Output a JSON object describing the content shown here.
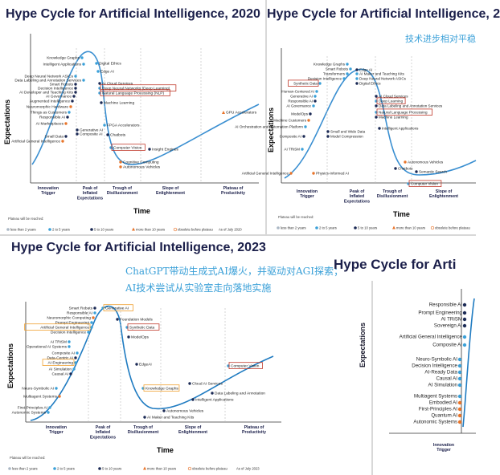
{
  "colors": {
    "title": "#1b1f4a",
    "curve_2020": "#3a8fd1",
    "curve_2023": "#1f7bc1",
    "cn_text": "#3aa0d8",
    "highlight_red": "#c0392b",
    "highlight_orange": "#f0a030",
    "dot_lt2": "#aab7c4",
    "dot_2to5": "#3aa0d8",
    "dot_5to10": "#1b2a55",
    "dot_gt10": "#e8742a"
  },
  "panel_2020": {
    "title": "Hype Cycle for Artificial Intelligence, 2020",
    "y_axis": "Expectations",
    "x_axis": "Time",
    "phases": [
      [
        "Innovation",
        "Trigger"
      ],
      [
        "Peak of",
        "Inflated",
        "Expectations"
      ],
      [
        "Trough of",
        "Disillusionment"
      ],
      [
        "Slope of",
        "Enlightenment"
      ],
      [
        "Plateau of",
        "Productivity"
      ]
    ],
    "items": [
      {
        "label": "Knowledge Graphs"
      },
      {
        "label": "Intelligent Applications"
      },
      {
        "label": "Digital Ethics"
      },
      {
        "label": "Deep Neural Network ASICs"
      },
      {
        "label": "Edge AI"
      },
      {
        "label": "Data Labeling and Annotation Services"
      },
      {
        "label": "Smart Robots"
      },
      {
        "label": "Decision Intelligence"
      },
      {
        "label": "AI Developer and Teaching Kits"
      },
      {
        "label": "AI Governance"
      },
      {
        "label": "Augmented Intelligence"
      },
      {
        "label": "Neuromorphic Hardware"
      },
      {
        "label": "Things as Customers"
      },
      {
        "label": "Responsible AI"
      },
      {
        "label": "AI Marketplaces"
      },
      {
        "label": "Generative AI"
      },
      {
        "label": "Composite AI"
      },
      {
        "label": "Small Data"
      },
      {
        "label": "Artificial General Intelligence"
      },
      {
        "label": "AI Cloud Services"
      },
      {
        "label": "Deep Neural Networks (Deep Learning)"
      },
      {
        "label": "Natural Language Processing (NLP)"
      },
      {
        "label": "Machine Learning"
      },
      {
        "label": "FPGA Accelerators"
      },
      {
        "label": "Chatbots"
      },
      {
        "label": "Computer Vision"
      },
      {
        "label": "Insight Engines"
      },
      {
        "label": "Cognitive Computing"
      },
      {
        "label": "Autonomous Vehicles"
      },
      {
        "label": "GPU Accelerators"
      }
    ],
    "legend_title": "Plateau will be reached:",
    "legend": [
      "less than 2 years",
      "2 to 5 years",
      "5 to 10 years",
      "more than 10 years",
      "obsolete before plateau"
    ],
    "as_of": "As of July 2020"
  },
  "panel_2021": {
    "title": "Hype Cycle for Artificial Intelligence, 2",
    "cn_note": "技术进步相对平稳",
    "y_axis": "Expectations",
    "x_axis": "Time",
    "phases": [
      [
        "Innovation",
        "Trigger"
      ],
      [
        "Peak of",
        "Inflated",
        "Expectations"
      ],
      [
        "Trough of",
        "Disillusionment"
      ],
      [
        "Slope of",
        "Enlightenment"
      ]
    ],
    "items": [
      {
        "label": "Knowledge Graphs"
      },
      {
        "label": "Smart Robots"
      },
      {
        "label": "Edge AI"
      },
      {
        "label": "Transformers"
      },
      {
        "label": "Decision Intelligence"
      },
      {
        "label": "AI Maker and Teaching Kits"
      },
      {
        "label": "Deep Neural Network ASICs"
      },
      {
        "label": "Synthetic Data"
      },
      {
        "label": "Digital Ethics"
      },
      {
        "label": "Human-Centered AI"
      },
      {
        "label": "Generative AI"
      },
      {
        "label": "Responsible AI"
      },
      {
        "label": "AI Governance"
      },
      {
        "label": "ModelOps"
      },
      {
        "label": "Machine Customers"
      },
      {
        "label": "AI Orchestration and Automation Platform"
      },
      {
        "label": "Composite AI"
      },
      {
        "label": "Small and Wide Data"
      },
      {
        "label": "Model Compression"
      },
      {
        "label": "AI TRiSM"
      },
      {
        "label": "AI Cloud Services"
      },
      {
        "label": "Deep Learning"
      },
      {
        "label": "Data Labeling and Annotation Services"
      },
      {
        "label": "Natural Language Processing"
      },
      {
        "label": "Machine Learning"
      },
      {
        "label": "Intelligent Applications"
      },
      {
        "label": "Artificial General Intelligence"
      },
      {
        "label": "Physics-Informed AI"
      },
      {
        "label": "Chatbots"
      },
      {
        "label": "Autonomous Vehicles"
      },
      {
        "label": "Semantic Search"
      },
      {
        "label": "Computer Vision"
      }
    ],
    "legend_title": "Plateau will be reached:",
    "legend": [
      "less than 2 years",
      "2 to 5 years",
      "5 to 10 years",
      "more than 10 years",
      "obsolete before plateau"
    ]
  },
  "panel_2023": {
    "title": "Hype Cycle for Artificial Intelligence, 2023",
    "cn_line1": "ChatGPT带动生成式AI爆火，并驱动对AGI探索；",
    "cn_line2": "AI技术尝试从实验室走向落地实施",
    "y_axis": "Expectations",
    "x_axis": "Time",
    "phases": [
      [
        "Innovation",
        "Trigger"
      ],
      [
        "Peak of",
        "Inflated",
        "Expectations"
      ],
      [
        "Trough of",
        "Disillusionment"
      ],
      [
        "Slope of",
        "Enlightenment"
      ],
      [
        "Plateau of",
        "Productivity"
      ]
    ],
    "items": [
      {
        "label": "Smart Robots"
      },
      {
        "label": "Generative AI"
      },
      {
        "label": "Responsible AI"
      },
      {
        "label": "Neuromorphic Computing"
      },
      {
        "label": "Prompt Engineering"
      },
      {
        "label": "Artificial General Intelligence"
      },
      {
        "label": "Decision Intelligence"
      },
      {
        "label": "Foundation Models"
      },
      {
        "label": "Synthetic Data"
      },
      {
        "label": "ModelOps"
      },
      {
        "label": "AI TRiSM"
      },
      {
        "label": "Operational AI Systems"
      },
      {
        "label": "Composite AI"
      },
      {
        "label": "Data-Centric AI"
      },
      {
        "label": "AI Engineering"
      },
      {
        "label": "AI Simulation"
      },
      {
        "label": "Causal AI"
      },
      {
        "label": "EdgeAI"
      },
      {
        "label": "Neuro-Symbolic AI"
      },
      {
        "label": "Multiagent Systems"
      },
      {
        "label": "First-Principles AI"
      },
      {
        "label": "Autonomic Systems"
      },
      {
        "label": "Knowledge Graphs"
      },
      {
        "label": "Cloud AI Services"
      },
      {
        "label": "Data Labeling and Annotation"
      },
      {
        "label": "Intelligent Applications"
      },
      {
        "label": "Autonomous Vehicles"
      },
      {
        "label": "AI Maker and Teaching Kits"
      },
      {
        "label": "Computer Vision"
      }
    ],
    "legend_title": "Plateau will be reached:",
    "legend": [
      "less than 2 years",
      "2 to 5 years",
      "5 to 10 years",
      "more than 10 years",
      "obsolete before plateau"
    ],
    "as_of": "As of July 2023"
  },
  "panel_2024": {
    "title": "Hype Cycle for Arti",
    "y_axis": "Expectations",
    "phases": [
      [
        "Innovation",
        "Trigger"
      ]
    ],
    "items": [
      {
        "label": "Responsible AI"
      },
      {
        "label": "Prompt Engineering"
      },
      {
        "label": "AI TRiSM"
      },
      {
        "label": "Sovereign AI"
      },
      {
        "label": "Artificial General Intelligence"
      },
      {
        "label": "Composite AI"
      },
      {
        "label": "Neuro-Symbolic AI"
      },
      {
        "label": "Decision Intelligence"
      },
      {
        "label": "AI-Ready Data"
      },
      {
        "label": "Causal AI"
      },
      {
        "label": "AI Simulation"
      },
      {
        "label": "Multiagent Systems"
      },
      {
        "label": "Embodied AI"
      },
      {
        "label": "First-Principles AI"
      },
      {
        "label": "Quantum AI"
      },
      {
        "label": "Autonomic Systems"
      }
    ]
  }
}
